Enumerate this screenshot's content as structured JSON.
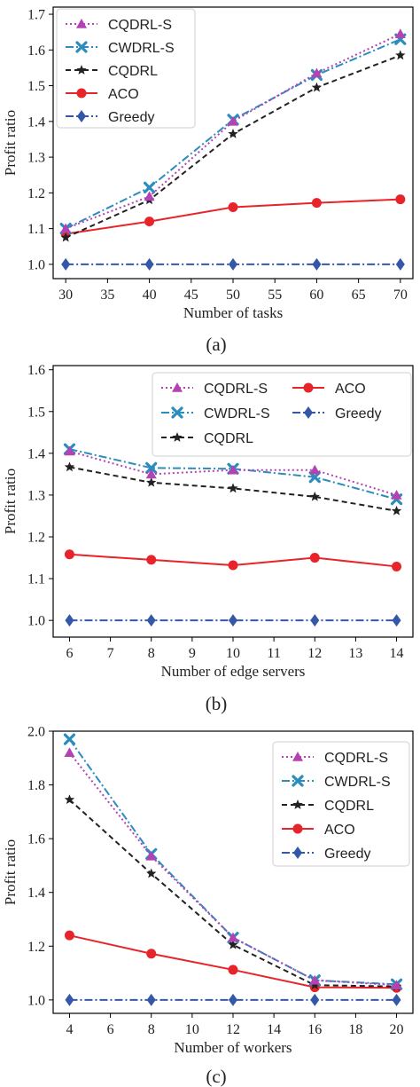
{
  "chart_data": [
    {
      "type": "line",
      "caption": "(a)",
      "xlabel": "Number of tasks",
      "ylabel": "Profit ratio",
      "xlim": [
        28.5,
        71.5
      ],
      "ylim": [
        0.96,
        1.72
      ],
      "xticks": [
        30,
        35,
        40,
        45,
        50,
        55,
        60,
        65,
        70
      ],
      "yticks": [
        1.0,
        1.1,
        1.2,
        1.3,
        1.4,
        1.5,
        1.6,
        1.7
      ],
      "ytick_decimals": 1,
      "legend_position": "top-left",
      "legend_columns": 1,
      "x": [
        30,
        40,
        50,
        60,
        70
      ],
      "series": [
        {
          "name": "CQDRL-S",
          "values": [
            1.1,
            1.19,
            1.4,
            1.535,
            1.645
          ],
          "color": "#b342b3",
          "dash": "2,3",
          "marker": "triangle"
        },
        {
          "name": "CWDRL-S",
          "values": [
            1.1,
            1.215,
            1.405,
            1.53,
            1.63
          ],
          "color": "#2b8cbe",
          "dash": "9,3,2,3",
          "marker": "x"
        },
        {
          "name": "CQDRL",
          "values": [
            1.075,
            1.18,
            1.365,
            1.495,
            1.585
          ],
          "color": "#222222",
          "dash": "6,4",
          "marker": "star"
        },
        {
          "name": "ACO",
          "values": [
            1.085,
            1.12,
            1.16,
            1.172,
            1.182
          ],
          "color": "#e8242b",
          "dash": "",
          "marker": "circle"
        },
        {
          "name": "Greedy",
          "values": [
            1.0,
            1.0,
            1.0,
            1.0,
            1.0
          ],
          "color": "#3457a8",
          "dash": "9,3,2,3",
          "marker": "diamond"
        }
      ]
    },
    {
      "type": "line",
      "caption": "(b)",
      "xlabel": "Number of edge servers",
      "ylabel": "Profit ratio",
      "xlim": [
        5.6,
        14.4
      ],
      "ylim": [
        0.96,
        1.61
      ],
      "xticks": [
        6,
        7,
        8,
        9,
        10,
        11,
        12,
        13,
        14
      ],
      "yticks": [
        1.0,
        1.1,
        1.2,
        1.3,
        1.4,
        1.5,
        1.6
      ],
      "ytick_decimals": 1,
      "legend_position": "top-right",
      "legend_columns": 2,
      "x": [
        6,
        8,
        10,
        12,
        14
      ],
      "series": [
        {
          "name": "CQDRL-S",
          "values": [
            1.405,
            1.35,
            1.36,
            1.36,
            1.3
          ],
          "color": "#b342b3",
          "dash": "2,3",
          "marker": "triangle"
        },
        {
          "name": "CWDRL-S",
          "values": [
            1.41,
            1.365,
            1.363,
            1.343,
            1.29
          ],
          "color": "#2b8cbe",
          "dash": "9,3,2,3",
          "marker": "x"
        },
        {
          "name": "CQDRL",
          "values": [
            1.367,
            1.33,
            1.316,
            1.296,
            1.262
          ],
          "color": "#222222",
          "dash": "6,4",
          "marker": "star"
        },
        {
          "name": "ACO",
          "values": [
            1.158,
            1.145,
            1.132,
            1.15,
            1.129
          ],
          "color": "#e8242b",
          "dash": "",
          "marker": "circle"
        },
        {
          "name": "Greedy",
          "values": [
            1.0,
            1.0,
            1.0,
            1.0,
            1.0
          ],
          "color": "#3457a8",
          "dash": "9,3,2,3",
          "marker": "diamond"
        }
      ]
    },
    {
      "type": "line",
      "caption": "(c)",
      "xlabel": "Number of workers",
      "ylabel": "Profit ratio",
      "xlim": [
        3.2,
        20.8
      ],
      "ylim": [
        0.95,
        2.0
      ],
      "xticks": [
        4,
        6,
        8,
        10,
        12,
        14,
        16,
        18,
        20
      ],
      "yticks": [
        1.0,
        1.2,
        1.4,
        1.6,
        1.8,
        2.0
      ],
      "ytick_decimals": 1,
      "legend_position": "top-right",
      "legend_columns": 1,
      "x": [
        4,
        8,
        12,
        16,
        20
      ],
      "series": [
        {
          "name": "CQDRL-S",
          "values": [
            1.92,
            1.535,
            1.232,
            1.073,
            1.055
          ],
          "color": "#b342b3",
          "dash": "2,3",
          "marker": "triangle"
        },
        {
          "name": "CWDRL-S",
          "values": [
            1.97,
            1.543,
            1.232,
            1.073,
            1.058
          ],
          "color": "#2b8cbe",
          "dash": "9,3,2,3",
          "marker": "x"
        },
        {
          "name": "CQDRL",
          "values": [
            1.745,
            1.47,
            1.205,
            1.055,
            1.05
          ],
          "color": "#222222",
          "dash": "6,4",
          "marker": "star"
        },
        {
          "name": "ACO",
          "values": [
            1.24,
            1.172,
            1.112,
            1.047,
            1.045
          ],
          "color": "#e8242b",
          "dash": "",
          "marker": "circle"
        },
        {
          "name": "Greedy",
          "values": [
            1.0,
            1.0,
            1.0,
            1.0,
            1.0
          ],
          "color": "#3457a8",
          "dash": "9,3,2,3",
          "marker": "diamond"
        }
      ]
    }
  ]
}
